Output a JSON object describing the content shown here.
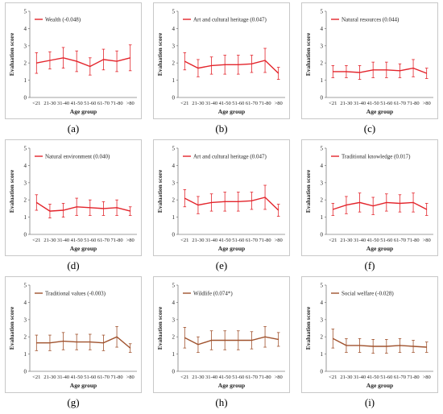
{
  "chart_data": [
    {
      "panel": "(a)",
      "type": "line",
      "title": "",
      "color": "#e3242b",
      "xlabel": "Age group",
      "ylabel": "Evaluation score",
      "ylim": [
        0,
        5
      ],
      "yticks": [
        "0",
        "1",
        "2",
        "3",
        "4",
        "5"
      ],
      "categories": [
        "<21",
        "21-30",
        "31-40",
        "41-50",
        "51-60",
        "61-70",
        "71-80",
        ">80"
      ],
      "series": [
        {
          "name": "Wealth (-0.048)",
          "values": [
            2.0,
            2.15,
            2.3,
            2.1,
            1.8,
            2.2,
            2.1,
            2.3
          ],
          "err": [
            0.6,
            0.5,
            0.6,
            0.6,
            0.5,
            0.6,
            0.6,
            0.75
          ]
        }
      ]
    },
    {
      "panel": "(b)",
      "type": "line",
      "title": "",
      "color": "#e3242b",
      "xlabel": "Age group",
      "ylabel": "Evaluation score",
      "ylim": [
        0,
        5
      ],
      "yticks": [
        "0",
        "1",
        "2",
        "3",
        "4",
        "5"
      ],
      "categories": [
        "<21",
        "21-30",
        "31-40",
        "41-50",
        "51-60",
        "61-70",
        "71-80",
        ">80"
      ],
      "series": [
        {
          "name": "Art and cultural heritage (0.047)",
          "values": [
            2.1,
            1.7,
            1.85,
            1.9,
            1.9,
            1.95,
            2.15,
            1.4
          ],
          "err": [
            0.5,
            0.5,
            0.5,
            0.55,
            0.55,
            0.5,
            0.7,
            0.35
          ]
        }
      ]
    },
    {
      "panel": "(c)",
      "type": "line",
      "title": "",
      "color": "#e3242b",
      "xlabel": "Age group",
      "ylabel": "Evaluation score",
      "ylim": [
        0,
        5
      ],
      "yticks": [
        "0",
        "1",
        "2",
        "3",
        "4",
        "5"
      ],
      "categories": [
        "<21",
        "21-30",
        "31-40",
        "41-50",
        "51-60",
        "61-70",
        "71-80",
        ">80"
      ],
      "series": [
        {
          "name": "Natural resources (0.044)",
          "values": [
            1.5,
            1.5,
            1.45,
            1.6,
            1.6,
            1.55,
            1.7,
            1.4
          ],
          "err": [
            0.35,
            0.35,
            0.4,
            0.45,
            0.45,
            0.4,
            0.5,
            0.3
          ]
        }
      ]
    },
    {
      "panel": "(d)",
      "type": "line",
      "title": "",
      "color": "#e3242b",
      "xlabel": "Age group",
      "ylabel": "Evaluation score",
      "ylim": [
        0,
        5
      ],
      "yticks": [
        "0",
        "1",
        "2",
        "3",
        "4",
        "5"
      ],
      "categories": [
        "<21",
        "21-30",
        "31-40",
        "41-50",
        "51-60",
        "61-70",
        "71-80",
        ">80"
      ],
      "series": [
        {
          "name": "Natural environment (0.040)",
          "values": [
            1.85,
            1.35,
            1.4,
            1.6,
            1.55,
            1.5,
            1.55,
            1.35
          ],
          "err": [
            0.45,
            0.4,
            0.4,
            0.5,
            0.45,
            0.4,
            0.45,
            0.25
          ]
        }
      ]
    },
    {
      "panel": "(e)",
      "type": "line",
      "title": "",
      "color": "#e3242b",
      "xlabel": "Age group",
      "ylabel": "Evaluation score",
      "ylim": [
        0,
        5
      ],
      "yticks": [
        "0",
        "1",
        "2",
        "3",
        "4",
        "5"
      ],
      "categories": [
        "<21",
        "21-30",
        "31-40",
        "41-50",
        "51-60",
        "61-70",
        "71-80",
        ">80"
      ],
      "series": [
        {
          "name": "Art and cultural heritage (0.047)",
          "values": [
            2.1,
            1.7,
            1.85,
            1.9,
            1.9,
            1.95,
            2.15,
            1.4
          ],
          "err": [
            0.5,
            0.5,
            0.5,
            0.55,
            0.55,
            0.5,
            0.7,
            0.35
          ]
        }
      ]
    },
    {
      "panel": "(f)",
      "type": "line",
      "title": "",
      "color": "#e3242b",
      "xlabel": "Age group",
      "ylabel": "Evaluation score",
      "ylim": [
        0,
        5
      ],
      "yticks": [
        "0",
        "1",
        "2",
        "3",
        "4",
        "5"
      ],
      "categories": [
        "<21",
        "21-30",
        "31-40",
        "41-50",
        "51-60",
        "61-70",
        "71-80",
        ">80"
      ],
      "series": [
        {
          "name": "Traditional knowledge (0.017)",
          "values": [
            1.45,
            1.7,
            1.85,
            1.65,
            1.85,
            1.8,
            1.85,
            1.45
          ],
          "err": [
            0.35,
            0.5,
            0.55,
            0.5,
            0.5,
            0.5,
            0.55,
            0.35
          ]
        }
      ]
    },
    {
      "panel": "(g)",
      "type": "line",
      "title": "",
      "color": "#a0522d",
      "xlabel": "Age group",
      "ylabel": "Evaluation score",
      "ylim": [
        0,
        5
      ],
      "yticks": [
        "0",
        "1",
        "2",
        "3",
        "4",
        "5"
      ],
      "categories": [
        "<21",
        "21-30",
        "31-40",
        "41-50",
        "51-60",
        "61-70",
        "71-80",
        ">80"
      ],
      "series": [
        {
          "name": "Traditional values (-0.003)",
          "values": [
            1.65,
            1.65,
            1.75,
            1.7,
            1.7,
            1.65,
            2.0,
            1.35
          ],
          "err": [
            0.45,
            0.45,
            0.5,
            0.45,
            0.45,
            0.45,
            0.6,
            0.25
          ]
        }
      ]
    },
    {
      "panel": "(h)",
      "type": "line",
      "title": "",
      "color": "#a0522d",
      "xlabel": "Age group",
      "ylabel": "Evaluation score",
      "ylim": [
        0,
        5
      ],
      "yticks": [
        "0",
        "1",
        "2",
        "3",
        "4",
        "5"
      ],
      "categories": [
        "<21",
        "21-30",
        "31-40",
        "41-50",
        "51-60",
        "61-70",
        "71-80",
        ">80"
      ],
      "series": [
        {
          "name": "Wildlife (0.074*)",
          "values": [
            1.95,
            1.55,
            1.8,
            1.8,
            1.8,
            1.8,
            2.0,
            1.85
          ],
          "err": [
            0.6,
            0.45,
            0.55,
            0.55,
            0.55,
            0.5,
            0.6,
            0.4
          ]
        }
      ]
    },
    {
      "panel": "(i)",
      "type": "line",
      "title": "",
      "color": "#a0522d",
      "xlabel": "Age group",
      "ylabel": "Evaluation score",
      "ylim": [
        0,
        5
      ],
      "yticks": [
        "0",
        "1",
        "2",
        "3",
        "4",
        "5"
      ],
      "categories": [
        "<21",
        "21-30",
        "31-40",
        "41-50",
        "51-60",
        "61-70",
        "71-80",
        ">80"
      ],
      "series": [
        {
          "name": "Social welfare (-0.028)",
          "values": [
            1.9,
            1.5,
            1.5,
            1.45,
            1.45,
            1.5,
            1.45,
            1.4
          ],
          "err": [
            0.55,
            0.4,
            0.4,
            0.4,
            0.4,
            0.4,
            0.35,
            0.3
          ]
        }
      ]
    }
  ]
}
